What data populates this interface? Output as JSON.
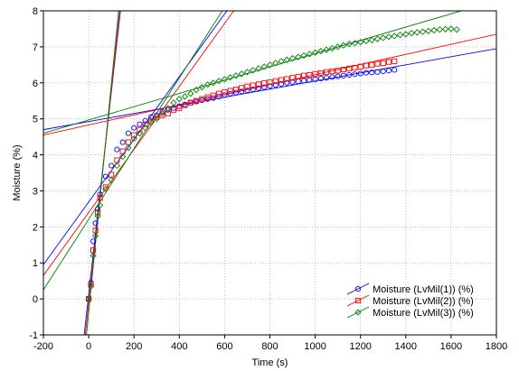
{
  "chart_data": {
    "type": "scatter",
    "title": "",
    "xlabel": "Time (s)",
    "ylabel": "Moisture (%)",
    "xlim": [
      -200,
      1800
    ],
    "ylim": [
      -1,
      8
    ],
    "x_ticks": [
      -200,
      0,
      200,
      400,
      600,
      800,
      1000,
      1200,
      1400,
      1600,
      1800
    ],
    "y_ticks": [
      -1,
      0,
      1,
      2,
      3,
      4,
      5,
      6,
      7,
      8
    ],
    "grid": true,
    "grid_style": "dotted",
    "legend_position": "bottom-right",
    "series": [
      {
        "name": "Moisture (LvMil(1)) (%)",
        "marker": "circle",
        "color": "#0000ff",
        "x": [
          0,
          10,
          20,
          30,
          40,
          50,
          75,
          100,
          125,
          150,
          175,
          200,
          225,
          250,
          275,
          300,
          325,
          350,
          375,
          400,
          425,
          450,
          475,
          500,
          525,
          550,
          575,
          600,
          625,
          650,
          675,
          700,
          725,
          750,
          775,
          800,
          825,
          850,
          875,
          900,
          925,
          950,
          975,
          1000,
          1025,
          1050,
          1075,
          1100,
          1125,
          1150,
          1175,
          1200,
          1225,
          1250,
          1275,
          1300,
          1325,
          1350
        ],
        "y": [
          0,
          0.45,
          1.6,
          2.1,
          2.5,
          2.9,
          3.4,
          3.7,
          4.15,
          4.35,
          4.6,
          4.75,
          4.85,
          4.95,
          5.05,
          5.1,
          5.2,
          5.25,
          5.3,
          5.35,
          5.4,
          5.45,
          5.48,
          5.52,
          5.55,
          5.58,
          5.62,
          5.66,
          5.7,
          5.73,
          5.76,
          5.79,
          5.82,
          5.85,
          5.88,
          5.91,
          5.94,
          5.97,
          6.0,
          6.02,
          6.04,
          6.06,
          6.08,
          6.1,
          6.12,
          6.14,
          6.16,
          6.18,
          6.2,
          6.22,
          6.24,
          6.26,
          6.28,
          6.29,
          6.3,
          6.32,
          6.34,
          6.36
        ]
      },
      {
        "name": "Moisture (LvMil(2)) (%)",
        "marker": "square",
        "color": "#ff0000",
        "x": [
          0,
          10,
          20,
          30,
          40,
          50,
          75,
          100,
          125,
          150,
          175,
          200,
          225,
          250,
          275,
          300,
          325,
          350,
          375,
          400,
          425,
          450,
          475,
          500,
          525,
          550,
          575,
          600,
          625,
          650,
          675,
          700,
          725,
          750,
          775,
          800,
          825,
          850,
          875,
          900,
          925,
          950,
          975,
          1000,
          1025,
          1050,
          1075,
          1100,
          1125,
          1150,
          1175,
          1200,
          1225,
          1250,
          1275,
          1300,
          1325,
          1350
        ],
        "y": [
          0,
          0.4,
          1.35,
          1.9,
          2.4,
          2.8,
          3.1,
          3.45,
          3.85,
          4.1,
          4.35,
          4.55,
          4.7,
          4.85,
          4.95,
          5.05,
          5.1,
          5.15,
          5.25,
          5.3,
          5.38,
          5.45,
          5.5,
          5.55,
          5.6,
          5.65,
          5.7,
          5.74,
          5.78,
          5.82,
          5.86,
          5.9,
          5.93,
          5.96,
          5.99,
          6.02,
          6.05,
          6.08,
          6.11,
          6.14,
          6.17,
          6.2,
          6.22,
          6.25,
          6.27,
          6.3,
          6.32,
          6.34,
          6.37,
          6.4,
          6.42,
          6.45,
          6.48,
          6.5,
          6.53,
          6.55,
          6.58,
          6.6
        ]
      },
      {
        "name": "Moisture (LvMil(3)) (%)",
        "marker": "diamond",
        "color": "#008000",
        "x": [
          0,
          10,
          20,
          30,
          40,
          50,
          75,
          100,
          125,
          150,
          175,
          200,
          225,
          250,
          275,
          300,
          325,
          350,
          375,
          400,
          425,
          450,
          475,
          500,
          525,
          550,
          575,
          600,
          625,
          650,
          675,
          700,
          725,
          750,
          775,
          800,
          825,
          850,
          875,
          900,
          925,
          950,
          975,
          1000,
          1025,
          1050,
          1075,
          1100,
          1125,
          1150,
          1175,
          1200,
          1225,
          1250,
          1275,
          1300,
          1325,
          1350,
          1375,
          1400,
          1425,
          1450,
          1475,
          1500,
          1525,
          1550,
          1575,
          1600,
          1625
        ],
        "y": [
          0,
          0.35,
          1.2,
          1.75,
          2.3,
          2.6,
          3.05,
          3.3,
          3.7,
          3.95,
          4.2,
          4.45,
          4.6,
          4.75,
          4.9,
          5.0,
          5.15,
          5.3,
          5.45,
          5.55,
          5.62,
          5.7,
          5.8,
          5.88,
          5.95,
          6.0,
          6.05,
          6.1,
          6.15,
          6.2,
          6.25,
          6.3,
          6.35,
          6.4,
          6.45,
          6.5,
          6.55,
          6.6,
          6.64,
          6.68,
          6.72,
          6.76,
          6.8,
          6.84,
          6.88,
          6.92,
          6.96,
          7.0,
          7.04,
          7.08,
          7.1,
          7.13,
          7.16,
          7.19,
          7.22,
          7.25,
          7.28,
          7.3,
          7.33,
          7.35,
          7.38,
          7.4,
          7.42,
          7.44,
          7.46,
          7.48,
          7.49,
          7.5,
          7.48
        ]
      }
    ],
    "fit_lines": [
      {
        "color": "#0000ff",
        "points": [
          [
            -200,
            4.7
          ],
          [
            1800,
            6.95
          ]
        ]
      },
      {
        "color": "#0000ff",
        "points": [
          [
            -200,
            0.95
          ],
          [
            610,
            8.0
          ]
        ]
      },
      {
        "color": "#0000ff",
        "points": [
          [
            -20,
            -1
          ],
          [
            140,
            8.0
          ]
        ]
      },
      {
        "color": "#ff0000",
        "points": [
          [
            -200,
            4.55
          ],
          [
            1800,
            7.35
          ]
        ]
      },
      {
        "color": "#ff0000",
        "points": [
          [
            -200,
            0.65
          ],
          [
            640,
            8.0
          ]
        ]
      },
      {
        "color": "#ff0000",
        "points": [
          [
            -15,
            -1
          ],
          [
            137,
            8.0
          ]
        ]
      },
      {
        "color": "#008000",
        "points": [
          [
            -200,
            4.6
          ],
          [
            1645,
            8.0
          ]
        ]
      },
      {
        "color": "#008000",
        "points": [
          [
            -200,
            0.25
          ],
          [
            590,
            8.0
          ]
        ]
      },
      {
        "color": "#008000",
        "points": [
          [
            -10,
            -1
          ],
          [
            132,
            8.0
          ]
        ]
      }
    ]
  }
}
